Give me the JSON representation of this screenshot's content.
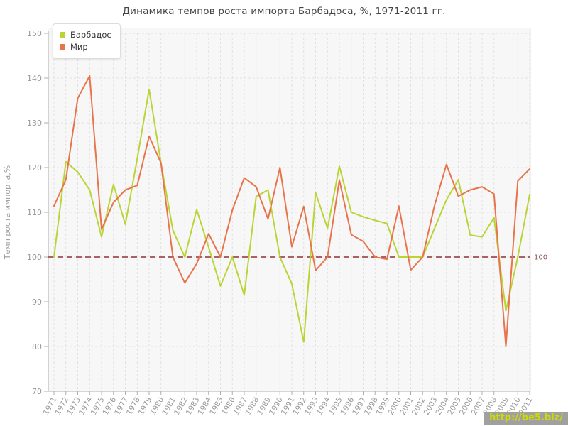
{
  "title": "Динамика темпов роста импорта Барбадоса, %, 1971-2011 гг.",
  "watermark": "http://be5.biz/",
  "colors": {
    "plot_bg": "#f7f7f7",
    "grid": "#e1e1e1",
    "axis": "#adadad",
    "tick_text": "#999999",
    "title_text": "#444444",
    "reference_line": "#a86165",
    "reference_label": "#8a5454",
    "series_barbados": "#b9d433",
    "series_world": "#e8744c",
    "watermark_bg": "#a0a0a0",
    "watermark_text": "#ccdb00"
  },
  "chart_data": {
    "type": "line",
    "title": "Динамика темпов роста импорта Барбадоса, %, 1971-2011 гг.",
    "xlabel": "",
    "ylabel": "Темп роста импорта,%",
    "ylim": [
      70,
      150
    ],
    "ytick_step": 10,
    "grid": true,
    "legend_position": "top-left",
    "reference_line": {
      "value": 100,
      "label": "100"
    },
    "categories": [
      "1971",
      "1972",
      "1973",
      "1974",
      "1975",
      "1976",
      "1977",
      "1978",
      "1979",
      "1980",
      "1981",
      "1982",
      "1983",
      "1984",
      "1985",
      "1986",
      "1987",
      "1988",
      "1989",
      "1990",
      "1991",
      "1992",
      "1993",
      "1994",
      "1995",
      "1996",
      "1997",
      "1998",
      "1999",
      "2000",
      "2001",
      "2002",
      "2003",
      "2004",
      "2005",
      "2006",
      "2007",
      "2008",
      "2009",
      "2010",
      "2011"
    ],
    "series": [
      {
        "name": "Барбадос",
        "slug": "barbados",
        "color": "#b9d433",
        "values": [
          100,
          121.3,
          119,
          115,
          104.5,
          116.2,
          107.3,
          122,
          137.5,
          121,
          106,
          100,
          110.6,
          102.2,
          93.5,
          100,
          91.5,
          113.5,
          115,
          100,
          94,
          81,
          114.4,
          106.4,
          120.3,
          110,
          109,
          108.2,
          107.5,
          100,
          100,
          100,
          106.4,
          112.8,
          117.3,
          104.9,
          104.5,
          108.8,
          88,
          100,
          114
        ]
      },
      {
        "name": "Мир",
        "slug": "world",
        "color": "#e8744c",
        "values": [
          111.4,
          117.3,
          135.5,
          140.5,
          106.2,
          112.2,
          115,
          116,
          127,
          121,
          100,
          94.2,
          98.5,
          105.2,
          100,
          110.5,
          117.7,
          115.7,
          108.5,
          120,
          102.3,
          111.3,
          97,
          100,
          117.2,
          105,
          103.5,
          100,
          99.5,
          111.4,
          97.1,
          100,
          111.5,
          120.7,
          113.6,
          115,
          115.7,
          114.1,
          80,
          117,
          119.7
        ]
      }
    ]
  }
}
